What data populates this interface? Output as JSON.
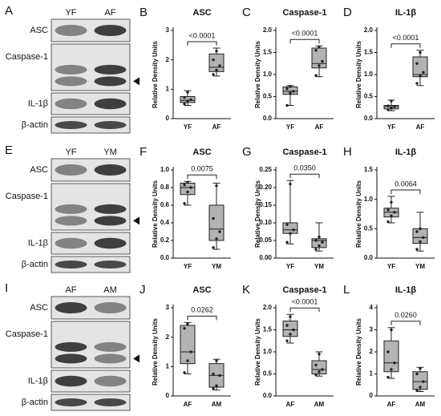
{
  "blots": [
    {
      "label": "A",
      "lanes": [
        "YF",
        "AF"
      ],
      "rows": [
        "ASC",
        "Caspase-1",
        "IL-1β",
        "β-actin"
      ]
    },
    {
      "label": "E",
      "lanes": [
        "YF",
        "YM"
      ],
      "rows": [
        "ASC",
        "Caspase-1",
        "IL-1β",
        "β-actin"
      ]
    },
    {
      "label": "I",
      "lanes": [
        "AF",
        "AM"
      ],
      "rows": [
        "ASC",
        "Caspase-1",
        "IL-1β",
        "β-actin"
      ]
    }
  ],
  "chart_data": [
    {
      "type": "box",
      "label": "B",
      "title": "ASC",
      "ylabel": "Relative Density Units",
      "annotation": "<0.0001",
      "categories": [
        "YF",
        "AF"
      ],
      "color": "#b3b3b3",
      "ylim": [
        0,
        3
      ],
      "yticks": [
        0,
        1,
        2,
        3
      ],
      "boxes": [
        {
          "min": 0.45,
          "q1": 0.55,
          "median": 0.62,
          "q3": 0.75,
          "max": 0.95,
          "points": [
            0.5,
            0.6,
            0.65,
            0.72,
            0.9
          ]
        },
        {
          "min": 1.45,
          "q1": 1.6,
          "median": 1.75,
          "q3": 2.2,
          "max": 2.4,
          "points": [
            1.5,
            1.65,
            1.8,
            2.0,
            2.3
          ]
        }
      ]
    },
    {
      "type": "box",
      "label": "C",
      "title": "Caspase-1",
      "ylabel": "Relative Density Units",
      "annotation": "<0.0001",
      "categories": [
        "YF",
        "AF"
      ],
      "color": "#b3b3b3",
      "ylim": [
        0,
        2
      ],
      "yticks": [
        {
          "value": 0,
          "label": "0.0"
        },
        0.5,
        {
          "value": 1,
          "label": "1.0"
        },
        1.5,
        {
          "value": 2,
          "label": "2.0"
        }
      ],
      "boxes": [
        {
          "min": 0.3,
          "q1": 0.55,
          "median": 0.62,
          "q3": 0.72,
          "max": 0.75,
          "points": [
            0.3,
            0.58,
            0.62,
            0.68,
            0.73
          ]
        },
        {
          "min": 0.95,
          "q1": 1.15,
          "median": 1.25,
          "q3": 1.6,
          "max": 1.65,
          "points": [
            0.98,
            1.2,
            1.3,
            1.55,
            1.62
          ]
        }
      ]
    },
    {
      "type": "box",
      "label": "D",
      "title": "IL-1β",
      "ylabel": "Relative Density Units",
      "annotation": "<0.0001",
      "categories": [
        "YF",
        "AF"
      ],
      "color": "#b3b3b3",
      "ylim": [
        0,
        2
      ],
      "yticks": [
        {
          "value": 0,
          "label": "0.0"
        },
        0.5,
        {
          "value": 1,
          "label": "1.0"
        },
        1.5,
        {
          "value": 2,
          "label": "2.0"
        }
      ],
      "boxes": [
        {
          "min": 0.18,
          "q1": 0.22,
          "median": 0.27,
          "q3": 0.3,
          "max": 0.42,
          "points": [
            0.2,
            0.24,
            0.27,
            0.29,
            0.4
          ]
        },
        {
          "min": 0.75,
          "q1": 0.95,
          "median": 1.0,
          "q3": 1.4,
          "max": 1.55,
          "points": [
            0.8,
            0.97,
            1.05,
            1.25,
            1.5
          ]
        }
      ]
    },
    {
      "type": "box",
      "label": "F",
      "title": "ASC",
      "ylabel": "Relative Density Units",
      "annotation": "0.0075",
      "categories": [
        "YF",
        "YM"
      ],
      "color": "#b3b3b3",
      "ylim": [
        0,
        1
      ],
      "yticks": [
        {
          "value": 0,
          "label": "0.0"
        },
        0.2,
        0.4,
        0.6,
        0.8,
        {
          "value": 1,
          "label": "1.0"
        }
      ],
      "boxes": [
        {
          "min": 0.6,
          "q1": 0.72,
          "median": 0.8,
          "q3": 0.85,
          "max": 0.87,
          "points": [
            0.62,
            0.75,
            0.8,
            0.83,
            0.86
          ]
        },
        {
          "min": 0.1,
          "q1": 0.2,
          "median": 0.33,
          "q3": 0.6,
          "max": 0.85,
          "points": [
            0.12,
            0.22,
            0.3,
            0.45,
            0.82
          ]
        }
      ]
    },
    {
      "type": "box",
      "label": "G",
      "title": "Caspase-1",
      "ylabel": "Relative Density Units",
      "annotation": "0.0350",
      "categories": [
        "YF",
        "YM"
      ],
      "color": "#b3b3b3",
      "ylim": [
        0,
        0.25
      ],
      "yticks": [
        {
          "value": 0,
          "label": "0.00"
        },
        0.05,
        {
          "value": 0.1,
          "label": "0.10"
        },
        0.15,
        {
          "value": 0.2,
          "label": "0.20"
        },
        0.25
      ],
      "boxes": [
        {
          "min": 0.04,
          "q1": 0.07,
          "median": 0.08,
          "q3": 0.1,
          "max": 0.22,
          "points": [
            0.045,
            0.07,
            0.08,
            0.095,
            0.21
          ]
        },
        {
          "min": 0.02,
          "q1": 0.03,
          "median": 0.05,
          "q3": 0.055,
          "max": 0.1,
          "points": [
            0.025,
            0.035,
            0.045,
            0.05,
            0.06
          ]
        }
      ]
    },
    {
      "type": "box",
      "label": "H",
      "title": "IL-1β",
      "ylabel": "Relative Density Units",
      "annotation": "0.0064",
      "categories": [
        "YF",
        "YM"
      ],
      "color": "#b3b3b3",
      "ylim": [
        0,
        1.5
      ],
      "yticks": [
        {
          "value": 0,
          "label": "0.0"
        },
        0.5,
        {
          "value": 1,
          "label": "1.0"
        },
        1.5
      ],
      "boxes": [
        {
          "min": 0.6,
          "q1": 0.7,
          "median": 0.78,
          "q3": 0.85,
          "max": 1.05,
          "points": [
            0.62,
            0.72,
            0.78,
            0.82,
            0.95
          ]
        },
        {
          "min": 0.12,
          "q1": 0.25,
          "median": 0.35,
          "q3": 0.5,
          "max": 0.78,
          "points": [
            0.15,
            0.28,
            0.35,
            0.45,
            0.5
          ]
        }
      ]
    },
    {
      "type": "box",
      "label": "J",
      "title": "ASC",
      "ylabel": "Relative Density Units",
      "annotation": "0.0262",
      "categories": [
        "AF",
        "AM"
      ],
      "color": "#b3b3b3",
      "ylim": [
        0,
        3
      ],
      "yticks": [
        0,
        1,
        2,
        3
      ],
      "boxes": [
        {
          "min": 0.75,
          "q1": 1.1,
          "median": 1.5,
          "q3": 2.4,
          "max": 2.5,
          "points": [
            0.8,
            1.2,
            1.5,
            2.3,
            2.45
          ]
        },
        {
          "min": 0.2,
          "q1": 0.3,
          "median": 0.7,
          "q3": 1.1,
          "max": 1.25,
          "points": [
            0.25,
            0.35,
            0.7,
            0.75,
            1.2
          ]
        }
      ]
    },
    {
      "type": "box",
      "label": "K",
      "title": "Caspase-1",
      "ylabel": "Relative Density Units",
      "annotation": "<0.0001",
      "categories": [
        "AF",
        "AM"
      ],
      "color": "#b3b3b3",
      "ylim": [
        0,
        2
      ],
      "yticks": [
        {
          "value": 0,
          "label": "0.0"
        },
        0.5,
        {
          "value": 1,
          "label": "1.0"
        },
        1.5,
        {
          "value": 2,
          "label": "2.0"
        }
      ],
      "boxes": [
        {
          "min": 1.2,
          "q1": 1.35,
          "median": 1.5,
          "q3": 1.7,
          "max": 1.85,
          "points": [
            1.25,
            1.4,
            1.5,
            1.6,
            1.8
          ]
        },
        {
          "min": 0.45,
          "q1": 0.5,
          "median": 0.6,
          "q3": 0.8,
          "max": 1.0,
          "points": [
            0.48,
            0.55,
            0.6,
            0.7,
            0.95
          ]
        }
      ]
    },
    {
      "type": "box",
      "label": "L",
      "title": "IL-1β",
      "ylabel": "Relative Density Units",
      "annotation": "0.0260",
      "categories": [
        "AF",
        "AM"
      ],
      "color": "#b3b3b3",
      "ylim": [
        0,
        4
      ],
      "yticks": [
        0,
        1,
        2,
        3,
        4
      ],
      "boxes": [
        {
          "min": 0.8,
          "q1": 1.1,
          "median": 1.5,
          "q3": 2.5,
          "max": 3.1,
          "points": [
            0.85,
            1.2,
            1.5,
            2.0,
            3.0
          ]
        },
        {
          "min": 0.2,
          "q1": 0.3,
          "median": 0.65,
          "q3": 1.1,
          "max": 1.3,
          "points": [
            0.25,
            0.4,
            0.65,
            1.0,
            1.25
          ]
        }
      ]
    }
  ]
}
